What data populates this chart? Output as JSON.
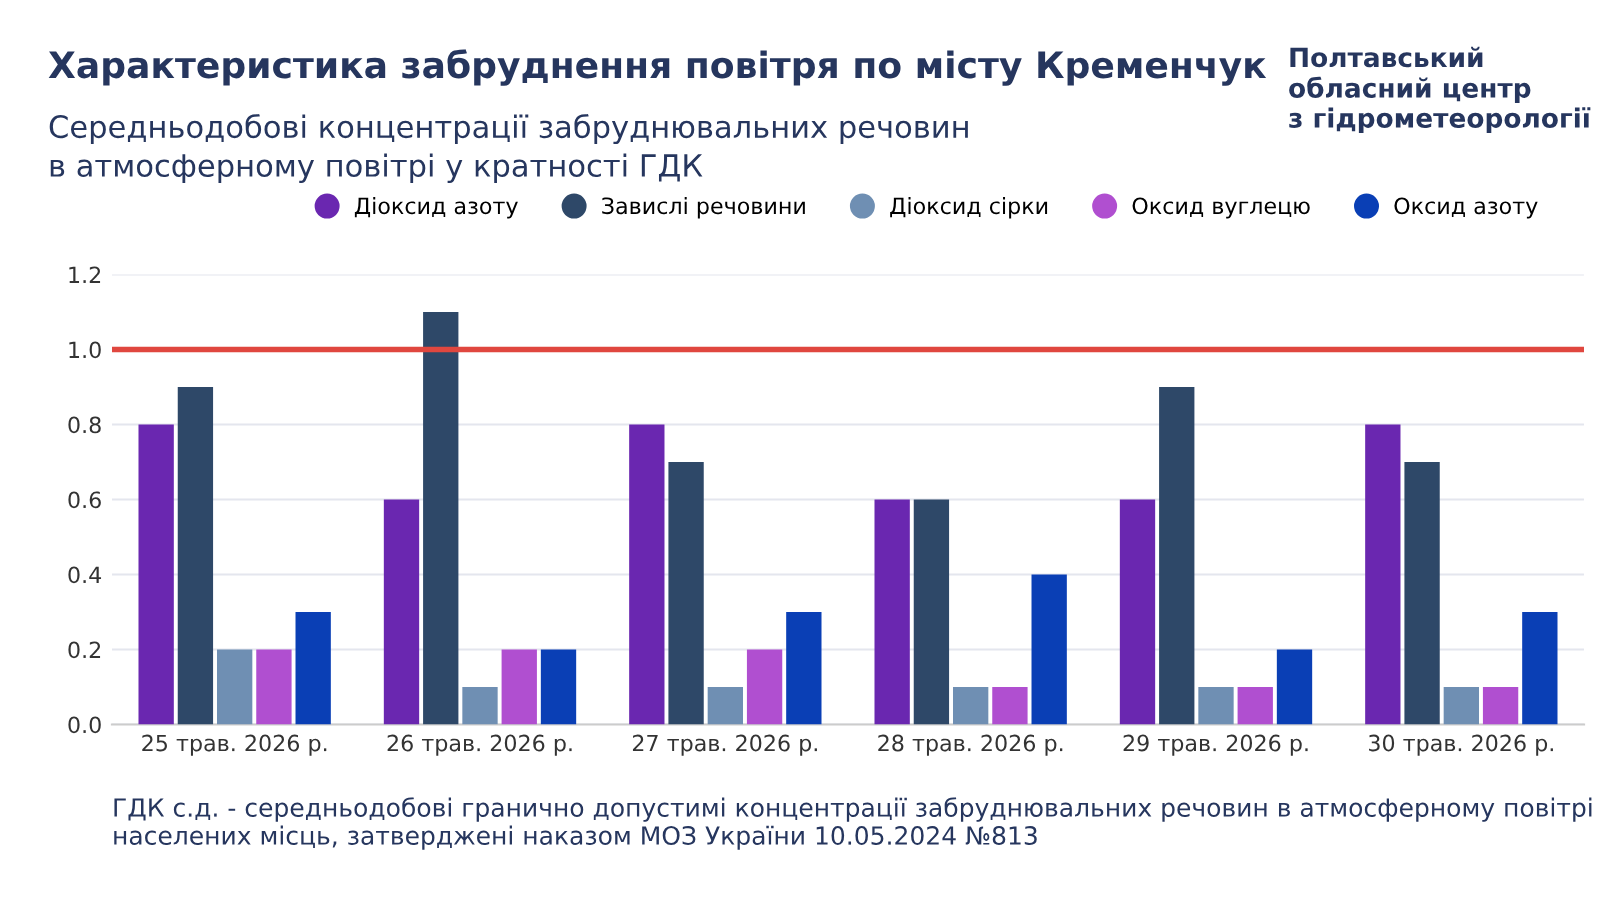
{
  "chart_data": {
    "type": "bar",
    "title": "Характеристика забруднення повітря по місту Кременчук",
    "subtitle": "Середньодобові концентрації забруднювальних речовин\nв атмосферному повітрі у кратності ГДК",
    "categories": [
      "25 трав. 2026 р.",
      "26 трав. 2026 р.",
      "27 трав. 2026 р.",
      "28 трав. 2026 р.",
      "29 трав. 2026 р.",
      "30 трав. 2026 р."
    ],
    "series": [
      {
        "name": "Діоксид азоту",
        "color": "#6a27b0",
        "values": [
          0.8,
          0.6,
          0.8,
          0.6,
          0.6,
          0.8
        ]
      },
      {
        "name": "Завислі речовини",
        "color": "#2e4868",
        "values": [
          0.9,
          1.1,
          0.7,
          0.6,
          0.9,
          0.7
        ]
      },
      {
        "name": "Діоксид сірки",
        "color": "#6f8fb3",
        "values": [
          0.2,
          0.1,
          0.1,
          0.1,
          0.1,
          0.1
        ]
      },
      {
        "name": "Оксид вуглецю",
        "color": "#b04fd0",
        "values": [
          0.2,
          0.2,
          0.2,
          0.1,
          0.1,
          0.1
        ]
      },
      {
        "name": "Оксид азоту",
        "color": "#0a3fb5",
        "values": [
          0.3,
          0.2,
          0.3,
          0.4,
          0.2,
          0.3
        ]
      }
    ],
    "ylim": [
      0,
      1.2
    ],
    "yticks": [
      {
        "value": 0,
        "label": "0.0"
      },
      {
        "value": 0.2,
        "label": "0.2"
      },
      {
        "value": 0.4,
        "label": "0.4"
      },
      {
        "value": 0.6,
        "label": "0.6"
      },
      {
        "value": 0.8,
        "label": "0.8"
      },
      {
        "value": 1,
        "label": "1.0"
      },
      {
        "value": 1.2,
        "label": "1.2"
      }
    ],
    "ref_lines": [
      {
        "axis": "y",
        "value": 1,
        "color": "#e0473f"
      }
    ],
    "grid": "y",
    "legend": "top",
    "annotations": [
      "Полтавський\nобласний центр\nз гідрометеорології",
      "ГДК с.д. - середньодобові гранично допустимі концентрації забруднювальних речовин в атмосферному повітрі населених місць, затверджені наказом МОЗ України 10.05.2024 №813"
    ]
  }
}
